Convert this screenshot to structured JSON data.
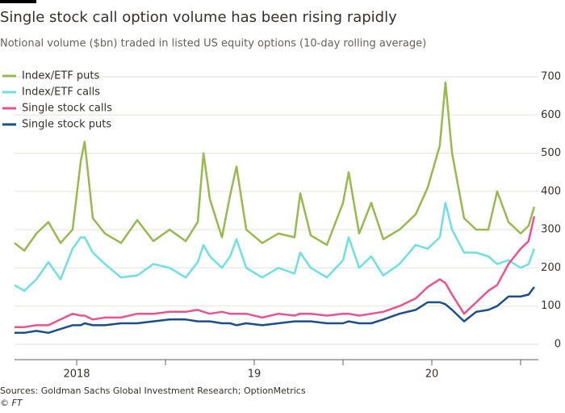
{
  "chart_data": {
    "type": "line",
    "title": "Single stock call option volume has been rising rapidly",
    "subtitle": "Notional volume ($bn) traded in listed US equity options (10-day rolling average)",
    "source": "Sources: Goldman Sachs Global Investment Research; OptionMetrics",
    "copyright": "© FT",
    "x": [
      2017.65,
      2017.705,
      2017.773,
      2017.841,
      2017.909,
      2017.977,
      2018.023,
      2018.045,
      2018.091,
      2018.159,
      2018.25,
      2018.341,
      2018.432,
      2018.523,
      2018.614,
      2018.682,
      2018.714,
      2018.75,
      2018.818,
      2018.864,
      2018.9,
      2018.955,
      2019.045,
      2019.136,
      2019.227,
      2019.259,
      2019.318,
      2019.409,
      2019.5,
      2019.532,
      2019.591,
      2019.659,
      2019.727,
      2019.818,
      2019.909,
      2019.977,
      2020.045,
      2020.077,
      2020.114,
      2020.182,
      2020.25,
      2020.318,
      2020.368,
      2020.432,
      2020.5,
      2020.545,
      2020.577
    ],
    "series": [
      {
        "name": "Index/ETF puts",
        "color": "#97b94d",
        "values": [
          265,
          245,
          290,
          320,
          265,
          300,
          480,
          530,
          330,
          290,
          265,
          325,
          270,
          300,
          270,
          320,
          500,
          380,
          280,
          390,
          465,
          300,
          265,
          290,
          280,
          395,
          285,
          260,
          370,
          450,
          290,
          370,
          275,
          300,
          340,
          410,
          520,
          685,
          500,
          330,
          300,
          300,
          400,
          320,
          290,
          310,
          360
        ]
      },
      {
        "name": "Index/ETF calls",
        "color": "#6ee0e3",
        "values": [
          155,
          140,
          170,
          215,
          170,
          250,
          280,
          280,
          240,
          210,
          175,
          180,
          210,
          200,
          175,
          215,
          260,
          230,
          200,
          230,
          275,
          200,
          175,
          200,
          185,
          240,
          200,
          175,
          220,
          280,
          200,
          230,
          180,
          210,
          260,
          250,
          280,
          370,
          300,
          240,
          240,
          230,
          210,
          220,
          200,
          210,
          250
        ]
      },
      {
        "name": "Single stock calls",
        "color": "#e9548e",
        "values": [
          45,
          45,
          50,
          50,
          65,
          80,
          75,
          75,
          65,
          70,
          70,
          80,
          80,
          85,
          85,
          90,
          85,
          80,
          85,
          80,
          80,
          80,
          70,
          80,
          75,
          80,
          80,
          75,
          80,
          80,
          75,
          80,
          85,
          100,
          120,
          150,
          170,
          160,
          130,
          80,
          110,
          140,
          155,
          210,
          250,
          270,
          335
        ]
      },
      {
        "name": "Single stock puts",
        "color": "#1b4f8b",
        "values": [
          30,
          30,
          35,
          30,
          40,
          50,
          50,
          55,
          50,
          50,
          55,
          55,
          60,
          65,
          65,
          60,
          60,
          60,
          55,
          55,
          50,
          55,
          50,
          55,
          60,
          60,
          60,
          55,
          55,
          60,
          55,
          55,
          65,
          80,
          90,
          110,
          110,
          105,
          90,
          60,
          85,
          90,
          100,
          125,
          125,
          130,
          150
        ]
      }
    ],
    "xlim": [
      2017.65,
      2020.6
    ],
    "xticks": [
      {
        "value": 2018,
        "label": "2018"
      },
      {
        "value": 2019,
        "label": "19"
      },
      {
        "value": 2020,
        "label": "20"
      }
    ],
    "xminor_ticks": [
      2018.5,
      2019.5,
      2020.5
    ],
    "ylim": [
      0,
      700
    ],
    "yticks": [
      0,
      100,
      200,
      300,
      400,
      500,
      600,
      700
    ],
    "grid": true
  }
}
